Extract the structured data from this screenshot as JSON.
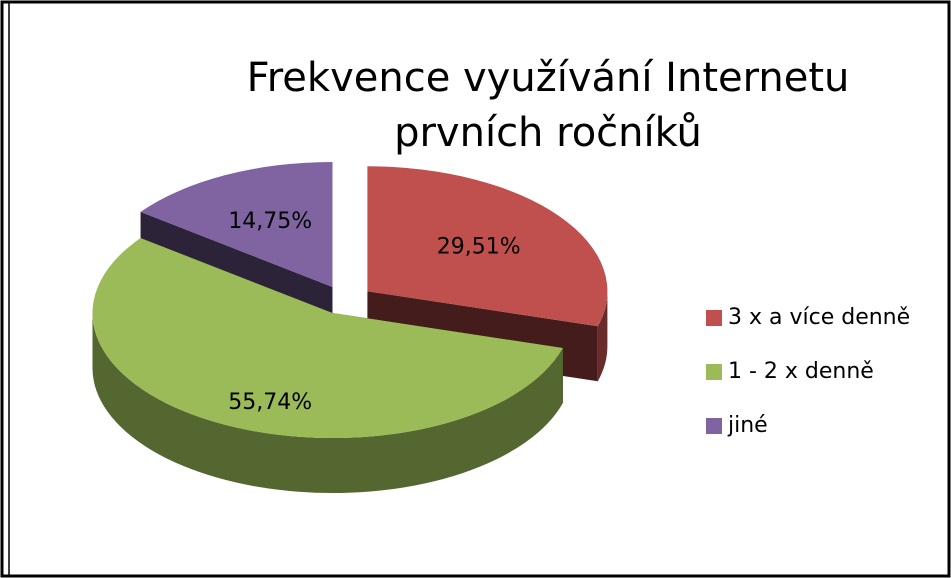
{
  "chart_data": {
    "type": "pie3d",
    "title": [
      "Frekvence využívání Internetu",
      "prvních ročníků"
    ],
    "categories": [
      "3 x a více denně",
      "1 - 2 x denně",
      "jiné"
    ],
    "values": [
      29.51,
      55.74,
      14.75
    ],
    "value_labels": [
      "29,51%",
      "55,74%",
      "14,75%"
    ],
    "colors": [
      "#c0504d",
      "#9bbb59",
      "#8064a2"
    ],
    "legend": "right"
  }
}
